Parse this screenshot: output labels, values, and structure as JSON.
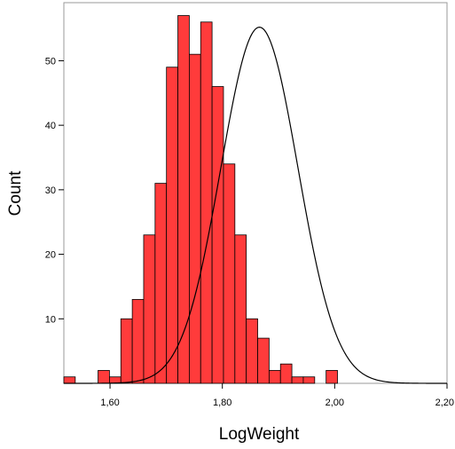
{
  "chart_data": {
    "type": "bar",
    "subtype": "histogram-with-normal-curve",
    "xlabel": "LogWeight",
    "ylabel": "Count",
    "x_tick_labels": [
      "1,60",
      "1,80",
      "2,00",
      "2,20"
    ],
    "x_tick_values": [
      1.6,
      1.8,
      2.0,
      2.2
    ],
    "y_tick_labels": [
      "10",
      "20",
      "30",
      "40",
      "50"
    ],
    "y_tick_values": [
      10,
      20,
      30,
      40,
      50
    ],
    "xlim": [
      1.5178,
      2.2
    ],
    "ylim": [
      0,
      59
    ],
    "bins": {
      "start": 1.5178,
      "width": 0.0203,
      "counts": [
        1,
        0,
        0,
        2,
        1,
        10,
        13,
        23,
        31,
        49,
        57,
        51,
        56,
        46,
        34,
        23,
        10,
        7,
        2,
        3,
        1,
        1,
        0,
        2
      ]
    },
    "normal_curve": {
      "mean": 1.866,
      "sd": 0.0685,
      "peak": 55.2
    },
    "colors": {
      "bar_fill": "#ff3b3b",
      "bar_stroke": "#000000",
      "curve": "#000000",
      "frame": "#9a9a9a"
    },
    "grid": false,
    "legend": "none"
  }
}
